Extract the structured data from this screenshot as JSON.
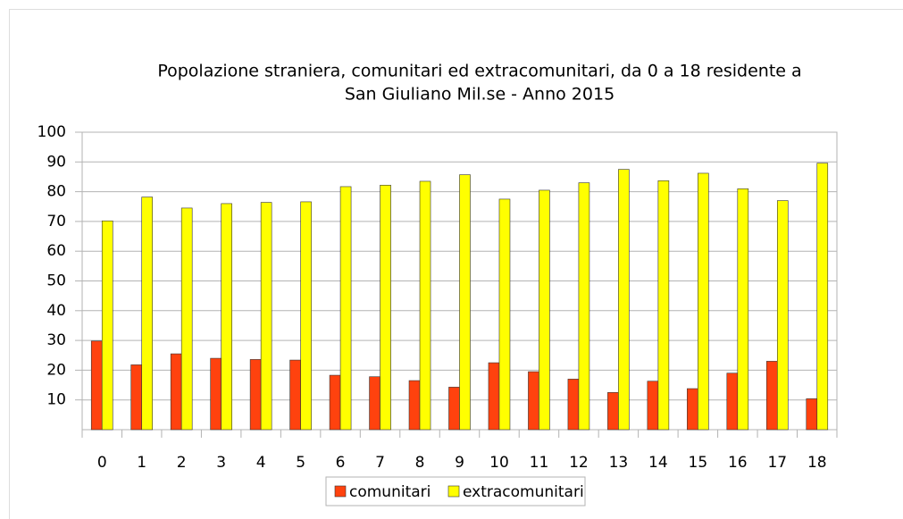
{
  "chart_data": {
    "type": "bar",
    "title": [
      "Popolazione straniera, comunitari ed extracomunitari, da 0 a 18 residente a",
      "San Giuliano Mil.se - Anno 2015"
    ],
    "categories": [
      "0",
      "1",
      "2",
      "3",
      "4",
      "5",
      "6",
      "7",
      "8",
      "9",
      "10",
      "11",
      "12",
      "13",
      "14",
      "15",
      "16",
      "17",
      "18"
    ],
    "series": [
      {
        "name": "comunitari",
        "color": "#ff420e",
        "values": [
          29.8,
          21.8,
          25.5,
          24,
          23.6,
          23.4,
          18.3,
          17.8,
          16.5,
          14.3,
          22.5,
          19.5,
          17,
          12.5,
          16.3,
          13.8,
          19,
          23,
          10.4
        ]
      },
      {
        "name": "extracomunitari",
        "color": "#ffff00",
        "values": [
          70.2,
          78.2,
          74.5,
          76,
          76.4,
          76.6,
          81.7,
          82.2,
          83.5,
          85.7,
          77.5,
          80.5,
          83,
          87.5,
          83.7,
          86.2,
          81,
          77,
          89.6
        ]
      }
    ],
    "ylim": [
      0,
      100
    ],
    "yticks": [
      10,
      20,
      30,
      40,
      50,
      60,
      70,
      80,
      90,
      100
    ],
    "grid": true,
    "legend": "bottom"
  }
}
